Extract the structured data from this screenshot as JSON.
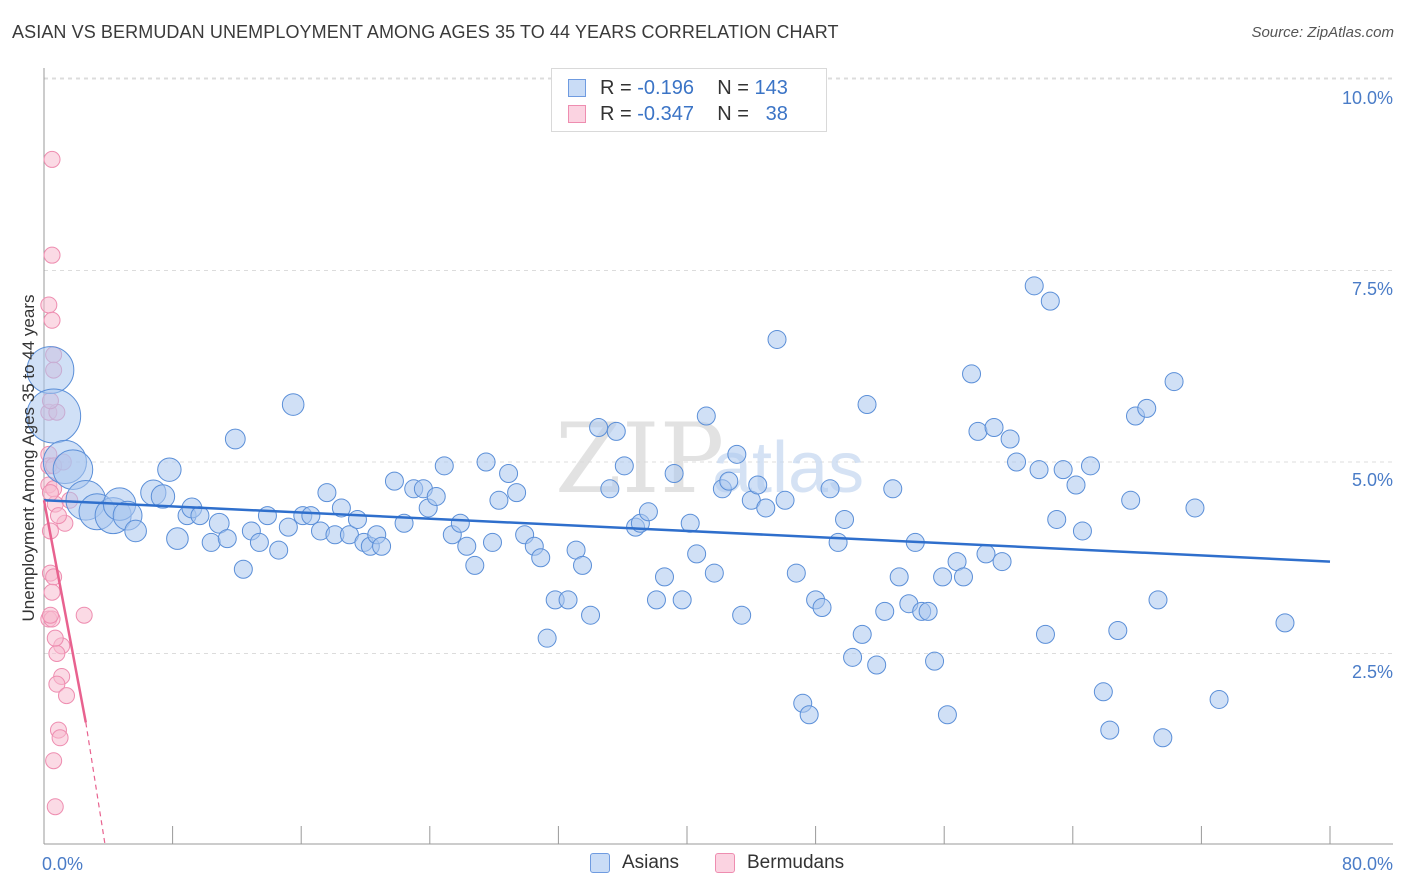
{
  "title": "ASIAN VS BERMUDAN UNEMPLOYMENT AMONG AGES 35 TO 44 YEARS CORRELATION CHART",
  "source": "Source: ZipAtlas.com",
  "watermark": {
    "zip": "ZIP",
    "atlas": "atlas"
  },
  "legend": {
    "rows": [
      {
        "r_label": "R =",
        "r_value": "-0.196",
        "n_label": "N =",
        "n_value": "143",
        "color": "#a9c6ef",
        "stroke": "#6f9be0"
      },
      {
        "r_label": "R =",
        "r_value": "-0.347",
        "n_label": "N =",
        "n_value": "38",
        "color": "#f8bcd0",
        "stroke": "#ee8db0"
      }
    ]
  },
  "bottom_legend": {
    "asians": "Asians",
    "bermudans": "Bermudans"
  },
  "chart_data": {
    "type": "scatter",
    "title": "ASIAN VS BERMUDAN UNEMPLOYMENT AMONG AGES 35 TO 44 YEARS CORRELATION CHART",
    "xlabel": "",
    "ylabel": "Unemployment Among Ages 35 to 44 years",
    "xlim": [
      0,
      80
    ],
    "ylim": [
      0,
      10.5
    ],
    "x_tick_labels": [
      "0.0%",
      "80.0%"
    ],
    "y_tick_labels": [
      "2.5%",
      "5.0%",
      "7.5%",
      "10.0%"
    ],
    "y_ticks": [
      2.5,
      5.0,
      7.5,
      10.0
    ],
    "grid": true,
    "series": [
      {
        "name": "Asians",
        "color": "#a9c6ef",
        "stroke": "#5b8fd8",
        "trend": {
          "x": [
            0,
            80
          ],
          "y": [
            4.5,
            3.7
          ],
          "color": "#2f6fcc"
        },
        "points": [
          [
            0.4,
            6.2,
            2.6
          ],
          [
            0.6,
            5.6,
            3.0
          ],
          [
            1.3,
            5.0,
            2.4
          ],
          [
            1.8,
            4.9,
            2.2
          ],
          [
            2.6,
            4.5,
            2.2
          ],
          [
            3.3,
            4.35,
            2.0
          ],
          [
            4.3,
            4.3,
            2.0
          ],
          [
            4.7,
            4.45,
            1.8
          ],
          [
            5.2,
            4.3,
            1.6
          ],
          [
            5.7,
            4.1,
            1.2
          ],
          [
            6.8,
            4.6,
            1.4
          ],
          [
            7.4,
            4.55,
            1.3
          ],
          [
            7.8,
            4.9,
            1.3
          ],
          [
            8.3,
            4.0,
            1.2
          ],
          [
            8.9,
            4.3,
            1.0
          ],
          [
            9.2,
            4.4,
            1.1
          ],
          [
            9.7,
            4.3,
            1.0
          ],
          [
            10.4,
            3.95,
            1.0
          ],
          [
            10.9,
            4.2,
            1.1
          ],
          [
            11.4,
            4.0,
            1.0
          ],
          [
            11.9,
            5.3,
            1.1
          ],
          [
            12.4,
            3.6,
            1.0
          ],
          [
            12.9,
            4.1,
            1.0
          ],
          [
            13.4,
            3.95,
            1.0
          ],
          [
            13.9,
            4.3,
            1.0
          ],
          [
            14.6,
            3.85,
            1.0
          ],
          [
            15.2,
            4.15,
            1.0
          ],
          [
            15.5,
            5.75,
            1.2
          ],
          [
            16.1,
            4.3,
            1.0
          ],
          [
            16.6,
            4.3,
            1.0
          ],
          [
            17.2,
            4.1,
            1.0
          ],
          [
            17.6,
            4.6,
            1.0
          ],
          [
            18.1,
            4.05,
            1.0
          ],
          [
            18.5,
            4.4,
            1.0
          ],
          [
            19.0,
            4.05,
            1.0
          ],
          [
            19.5,
            4.25,
            1.0
          ],
          [
            19.9,
            3.95,
            1.0
          ],
          [
            20.3,
            3.9,
            1.0
          ],
          [
            20.7,
            4.05,
            1.0
          ],
          [
            21.0,
            3.9,
            1.0
          ],
          [
            21.8,
            4.75,
            1.0
          ],
          [
            22.4,
            4.2,
            1.0
          ],
          [
            23.0,
            4.65,
            1.0
          ],
          [
            23.6,
            4.65,
            1.0
          ],
          [
            23.9,
            4.4,
            1.0
          ],
          [
            24.4,
            4.55,
            1.0
          ],
          [
            24.9,
            4.95,
            1.0
          ],
          [
            25.4,
            4.05,
            1.0
          ],
          [
            25.9,
            4.2,
            1.0
          ],
          [
            26.3,
            3.9,
            1.0
          ],
          [
            26.8,
            3.65,
            1.0
          ],
          [
            27.5,
            5.0,
            1.0
          ],
          [
            27.9,
            3.95,
            1.0
          ],
          [
            28.3,
            4.5,
            1.0
          ],
          [
            28.9,
            4.85,
            1.0
          ],
          [
            29.4,
            4.6,
            1.0
          ],
          [
            29.9,
            4.05,
            1.0
          ],
          [
            30.5,
            3.9,
            1.0
          ],
          [
            30.9,
            3.75,
            1.0
          ],
          [
            31.3,
            2.7,
            1.0
          ],
          [
            31.8,
            3.2,
            1.0
          ],
          [
            32.6,
            3.2,
            1.0
          ],
          [
            33.1,
            3.85,
            1.0
          ],
          [
            33.5,
            3.65,
            1.0
          ],
          [
            34.0,
            3.0,
            1.0
          ],
          [
            34.5,
            5.45,
            1.0
          ],
          [
            35.2,
            4.65,
            1.0
          ],
          [
            35.6,
            5.4,
            1.0
          ],
          [
            36.1,
            4.95,
            1.0
          ],
          [
            36.8,
            4.15,
            1.0
          ],
          [
            37.1,
            4.2,
            1.0
          ],
          [
            37.6,
            4.35,
            1.0
          ],
          [
            38.1,
            3.2,
            1.0
          ],
          [
            38.6,
            3.5,
            1.0
          ],
          [
            39.2,
            4.85,
            1.0
          ],
          [
            39.7,
            3.2,
            1.0
          ],
          [
            40.2,
            4.2,
            1.0
          ],
          [
            40.6,
            3.8,
            1.0
          ],
          [
            41.2,
            5.6,
            1.0
          ],
          [
            41.7,
            3.55,
            1.0
          ],
          [
            42.2,
            4.65,
            1.0
          ],
          [
            42.6,
            4.75,
            1.0
          ],
          [
            43.1,
            5.1,
            1.0
          ],
          [
            43.4,
            3.0,
            1.0
          ],
          [
            44.0,
            4.5,
            1.0
          ],
          [
            44.4,
            4.7,
            1.0
          ],
          [
            44.9,
            4.4,
            1.0
          ],
          [
            45.6,
            6.6,
            1.0
          ],
          [
            46.1,
            4.5,
            1.0
          ],
          [
            46.8,
            3.55,
            1.0
          ],
          [
            47.2,
            1.85,
            1.0
          ],
          [
            47.6,
            1.7,
            1.0
          ],
          [
            48.0,
            3.2,
            1.0
          ],
          [
            48.4,
            3.1,
            1.0
          ],
          [
            48.9,
            4.65,
            1.0
          ],
          [
            49.4,
            3.95,
            1.0
          ],
          [
            49.8,
            4.25,
            1.0
          ],
          [
            50.3,
            2.45,
            1.0
          ],
          [
            50.9,
            2.75,
            1.0
          ],
          [
            51.2,
            5.75,
            1.0
          ],
          [
            51.8,
            2.35,
            1.0
          ],
          [
            52.3,
            3.05,
            1.0
          ],
          [
            52.8,
            4.65,
            1.0
          ],
          [
            53.2,
            3.5,
            1.0
          ],
          [
            53.8,
            3.15,
            1.0
          ],
          [
            54.2,
            3.95,
            1.0
          ],
          [
            54.6,
            3.05,
            1.0
          ],
          [
            55.0,
            3.05,
            1.0
          ],
          [
            55.4,
            2.4,
            1.0
          ],
          [
            55.9,
            3.5,
            1.0
          ],
          [
            56.2,
            1.7,
            1.0
          ],
          [
            56.8,
            3.7,
            1.0
          ],
          [
            57.2,
            3.5,
            1.0
          ],
          [
            57.7,
            6.15,
            1.0
          ],
          [
            58.1,
            5.4,
            1.0
          ],
          [
            58.6,
            3.8,
            1.0
          ],
          [
            59.1,
            5.45,
            1.0
          ],
          [
            59.6,
            3.7,
            1.0
          ],
          [
            60.1,
            5.3,
            1.0
          ],
          [
            60.5,
            5.0,
            1.0
          ],
          [
            61.6,
            7.3,
            1.0
          ],
          [
            61.9,
            4.9,
            1.0
          ],
          [
            62.3,
            2.75,
            1.0
          ],
          [
            62.6,
            7.1,
            1.0
          ],
          [
            63.0,
            4.25,
            1.0
          ],
          [
            63.4,
            4.9,
            1.0
          ],
          [
            64.2,
            4.7,
            1.0
          ],
          [
            64.6,
            4.1,
            1.0
          ],
          [
            65.1,
            4.95,
            1.0
          ],
          [
            65.9,
            2.0,
            1.0
          ],
          [
            66.3,
            1.5,
            1.0
          ],
          [
            66.8,
            2.8,
            1.0
          ],
          [
            67.6,
            4.5,
            1.0
          ],
          [
            67.9,
            5.6,
            1.0
          ],
          [
            68.6,
            5.7,
            1.0
          ],
          [
            69.3,
            3.2,
            1.0
          ],
          [
            69.6,
            1.4,
            1.0
          ],
          [
            70.3,
            6.05,
            1.0
          ],
          [
            71.6,
            4.4,
            1.0
          ],
          [
            73.1,
            1.9,
            1.0
          ],
          [
            77.2,
            2.9,
            1.0
          ]
        ]
      },
      {
        "name": "Bermudans",
        "color": "#f8bcd0",
        "stroke": "#ee8db0",
        "trend": {
          "x": [
            0,
            2.6
          ],
          "y": [
            4.5,
            1.6
          ],
          "dash_x": [
            2.6,
            3.8
          ],
          "dash_y": [
            1.6,
            0.0
          ],
          "color": "#e8628f"
        },
        "points": [
          [
            0.5,
            8.95
          ],
          [
            0.5,
            7.7
          ],
          [
            0.3,
            7.05
          ],
          [
            0.5,
            6.85
          ],
          [
            0.6,
            6.4
          ],
          [
            0.3,
            5.65
          ],
          [
            0.8,
            5.65
          ],
          [
            0.3,
            5.1
          ],
          [
            0.3,
            4.95
          ],
          [
            0.6,
            4.95
          ],
          [
            0.3,
            4.7
          ],
          [
            0.6,
            4.65
          ],
          [
            0.7,
            4.45
          ],
          [
            1.6,
            4.5
          ],
          [
            1.3,
            4.2
          ],
          [
            0.4,
            4.1
          ],
          [
            0.4,
            3.55
          ],
          [
            0.6,
            3.5
          ],
          [
            0.5,
            3.3
          ],
          [
            0.3,
            2.95
          ],
          [
            0.5,
            2.95
          ],
          [
            2.5,
            3.0
          ],
          [
            1.1,
            2.6
          ],
          [
            0.8,
            2.5
          ],
          [
            1.1,
            2.2
          ],
          [
            0.8,
            2.1
          ],
          [
            1.4,
            1.95
          ],
          [
            0.9,
            1.5
          ],
          [
            1.0,
            1.4
          ],
          [
            0.6,
            1.1
          ],
          [
            0.7,
            0.5
          ],
          [
            0.4,
            5.8
          ],
          [
            0.6,
            6.2
          ],
          [
            0.9,
            4.3
          ],
          [
            0.4,
            3.0
          ],
          [
            1.2,
            5.0
          ],
          [
            0.7,
            2.7
          ],
          [
            0.4,
            4.6
          ]
        ]
      }
    ]
  }
}
